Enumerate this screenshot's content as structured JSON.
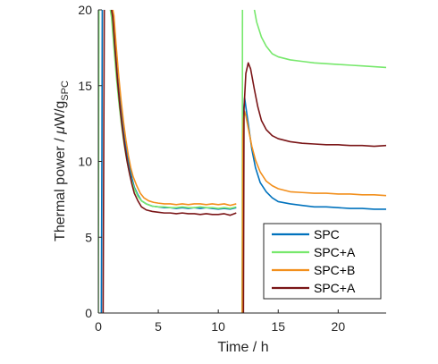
{
  "chart_data": {
    "type": "line",
    "title": "",
    "xlabel": "Time / h",
    "ylabel_parts": {
      "prefix": "Thermal power / ",
      "mu": "μ",
      "unit": "W/g",
      "subscript": "SPC"
    },
    "xlim": [
      0,
      24
    ],
    "ylim": [
      0,
      20
    ],
    "xticks": [
      0,
      5,
      10,
      15,
      20
    ],
    "yticks": [
      0,
      5,
      10,
      15,
      20
    ],
    "xtick_labels": [
      "0",
      "5",
      "10",
      "15",
      "20"
    ],
    "ytick_labels": [
      "0",
      "5",
      "10",
      "15",
      "20"
    ],
    "grid": false,
    "legend_position": "bottom-right",
    "series": [
      {
        "name": "SPC",
        "color": "#0072BD",
        "segments": [
          [
            [
              0.25,
              0
            ],
            [
              0.3,
              10.8
            ],
            [
              0.33,
              20.5
            ]
          ],
          [
            [
              1.05,
              20.5
            ],
            [
              1.2,
              19.8
            ],
            [
              1.4,
              17.6
            ],
            [
              1.6,
              15.6
            ],
            [
              1.8,
              14.0
            ],
            [
              2.0,
              12.6
            ],
            [
              2.2,
              11.4
            ],
            [
              2.4,
              10.4
            ],
            [
              2.6,
              9.6
            ],
            [
              2.8,
              8.9
            ],
            [
              3.0,
              8.3
            ],
            [
              3.3,
              7.8
            ],
            [
              3.6,
              7.4
            ],
            [
              4.0,
              7.2
            ],
            [
              4.5,
              7.05
            ],
            [
              5.0,
              7.0
            ],
            [
              5.5,
              6.95
            ],
            [
              6.0,
              6.95
            ],
            [
              6.5,
              6.9
            ],
            [
              7.0,
              6.95
            ],
            [
              7.5,
              6.9
            ],
            [
              8.0,
              6.95
            ],
            [
              8.5,
              6.9
            ],
            [
              9.0,
              6.95
            ],
            [
              9.5,
              6.9
            ],
            [
              10.0,
              6.85
            ],
            [
              10.5,
              6.9
            ],
            [
              11.0,
              6.85
            ],
            [
              11.5,
              6.95
            ]
          ],
          [
            [
              12.0,
              0
            ],
            [
              12.05,
              10.8
            ],
            [
              12.1,
              13.2
            ],
            [
              12.2,
              14.2
            ],
            [
              12.3,
              13.6
            ],
            [
              12.5,
              12.5
            ],
            [
              12.8,
              10.8
            ],
            [
              13.1,
              9.6
            ],
            [
              13.5,
              8.6
            ],
            [
              14.0,
              8.0
            ],
            [
              14.5,
              7.6
            ],
            [
              15.0,
              7.35
            ],
            [
              16.0,
              7.2
            ],
            [
              17.0,
              7.1
            ],
            [
              18.0,
              7.0
            ],
            [
              19.0,
              7.0
            ],
            [
              20.0,
              6.95
            ],
            [
              21.0,
              6.9
            ],
            [
              22.0,
              6.9
            ],
            [
              23.0,
              6.85
            ],
            [
              24.0,
              6.85
            ]
          ]
        ]
      },
      {
        "name": "SPC+A",
        "color": "#77E86C",
        "segments": [
          [
            [
              0.0,
              0
            ],
            [
              0.05,
              20.5
            ]
          ],
          [
            [
              0.9,
              20.5
            ],
            [
              1.1,
              19.5
            ],
            [
              1.3,
              17.5
            ],
            [
              1.5,
              15.6
            ],
            [
              1.7,
              14.0
            ],
            [
              1.9,
              12.6
            ],
            [
              2.1,
              11.4
            ],
            [
              2.3,
              10.4
            ],
            [
              2.5,
              9.6
            ],
            [
              2.7,
              8.9
            ],
            [
              3.0,
              8.2
            ],
            [
              3.3,
              7.7
            ],
            [
              3.6,
              7.4
            ],
            [
              4.0,
              7.2
            ],
            [
              4.5,
              7.05
            ],
            [
              5.0,
              7.0
            ],
            [
              5.5,
              7.0
            ],
            [
              6.0,
              6.95
            ],
            [
              6.5,
              6.95
            ],
            [
              7.0,
              7.0
            ],
            [
              7.5,
              6.95
            ],
            [
              8.0,
              6.95
            ],
            [
              8.5,
              7.0
            ],
            [
              9.0,
              6.95
            ],
            [
              9.5,
              6.95
            ],
            [
              10.0,
              6.9
            ],
            [
              10.5,
              6.95
            ],
            [
              11.0,
              6.9
            ],
            [
              11.5,
              7.0
            ]
          ],
          [
            [
              12.0,
              0
            ],
            [
              12.02,
              20.5
            ]
          ],
          [
            [
              12.9,
              20.5
            ],
            [
              13.2,
              19.2
            ],
            [
              13.6,
              18.2
            ],
            [
              14.0,
              17.6
            ],
            [
              14.5,
              17.1
            ],
            [
              15.0,
              16.9
            ],
            [
              16.0,
              16.7
            ],
            [
              17.0,
              16.6
            ],
            [
              18.0,
              16.5
            ],
            [
              19.0,
              16.45
            ],
            [
              20.0,
              16.4
            ],
            [
              21.0,
              16.35
            ],
            [
              22.0,
              16.3
            ],
            [
              23.0,
              16.25
            ],
            [
              24.0,
              16.2
            ]
          ]
        ]
      },
      {
        "name": "SPC+B",
        "color": "#F28F1C",
        "segments": [
          [
            [
              1.1,
              20.5
            ],
            [
              1.3,
              19.6
            ],
            [
              1.5,
              17.5
            ],
            [
              1.7,
              15.6
            ],
            [
              1.9,
              14.0
            ],
            [
              2.1,
              12.6
            ],
            [
              2.3,
              11.4
            ],
            [
              2.5,
              10.4
            ],
            [
              2.7,
              9.6
            ],
            [
              2.9,
              9.0
            ],
            [
              3.2,
              8.4
            ],
            [
              3.5,
              7.9
            ],
            [
              3.8,
              7.6
            ],
            [
              4.2,
              7.4
            ],
            [
              4.6,
              7.3
            ],
            [
              5.0,
              7.25
            ],
            [
              5.5,
              7.2
            ],
            [
              6.0,
              7.2
            ],
            [
              6.5,
              7.15
            ],
            [
              7.0,
              7.2
            ],
            [
              7.5,
              7.15
            ],
            [
              8.0,
              7.2
            ],
            [
              8.5,
              7.2
            ],
            [
              9.0,
              7.15
            ],
            [
              9.5,
              7.2
            ],
            [
              10.0,
              7.15
            ],
            [
              10.5,
              7.2
            ],
            [
              11.0,
              7.1
            ],
            [
              11.5,
              7.2
            ]
          ],
          [
            [
              12.0,
              0
            ],
            [
              12.05,
              11.5
            ],
            [
              12.1,
              12.8
            ],
            [
              12.2,
              13.3
            ],
            [
              12.3,
              13.0
            ],
            [
              12.5,
              12.2
            ],
            [
              12.8,
              11.0
            ],
            [
              13.1,
              10.1
            ],
            [
              13.5,
              9.3
            ],
            [
              14.0,
              8.7
            ],
            [
              14.5,
              8.4
            ],
            [
              15.0,
              8.2
            ],
            [
              16.0,
              8.0
            ],
            [
              17.0,
              7.95
            ],
            [
              18.0,
              7.9
            ],
            [
              19.0,
              7.9
            ],
            [
              20.0,
              7.85
            ],
            [
              21.0,
              7.85
            ],
            [
              22.0,
              7.8
            ],
            [
              23.0,
              7.8
            ],
            [
              24.0,
              7.75
            ]
          ]
        ]
      },
      {
        "name": "SPC+A",
        "color": "#7A1517",
        "segments": [
          [
            [
              0.4,
              0
            ],
            [
              0.45,
              10.5
            ],
            [
              0.5,
              20.5
            ]
          ],
          [
            [
              1.0,
              20.5
            ],
            [
              1.2,
              19.5
            ],
            [
              1.4,
              17.3
            ],
            [
              1.6,
              15.3
            ],
            [
              1.8,
              13.6
            ],
            [
              2.0,
              12.2
            ],
            [
              2.2,
              11.0
            ],
            [
              2.4,
              10.0
            ],
            [
              2.6,
              9.2
            ],
            [
              2.8,
              8.5
            ],
            [
              3.0,
              7.9
            ],
            [
              3.3,
              7.4
            ],
            [
              3.6,
              7.0
            ],
            [
              4.0,
              6.8
            ],
            [
              4.5,
              6.7
            ],
            [
              5.0,
              6.65
            ],
            [
              5.5,
              6.6
            ],
            [
              6.0,
              6.6
            ],
            [
              6.5,
              6.55
            ],
            [
              7.0,
              6.6
            ],
            [
              7.5,
              6.55
            ],
            [
              8.0,
              6.55
            ],
            [
              8.5,
              6.5
            ],
            [
              9.0,
              6.55
            ],
            [
              9.5,
              6.5
            ],
            [
              10.0,
              6.5
            ],
            [
              10.5,
              6.55
            ],
            [
              11.0,
              6.45
            ],
            [
              11.5,
              6.6
            ]
          ],
          [
            [
              12.1,
              0
            ],
            [
              12.15,
              13.5
            ],
            [
              12.3,
              15.8
            ],
            [
              12.5,
              16.5
            ],
            [
              12.7,
              16.1
            ],
            [
              13.0,
              14.8
            ],
            [
              13.3,
              13.6
            ],
            [
              13.6,
              12.7
            ],
            [
              14.0,
              12.1
            ],
            [
              14.5,
              11.7
            ],
            [
              15.0,
              11.5
            ],
            [
              16.0,
              11.3
            ],
            [
              17.0,
              11.2
            ],
            [
              18.0,
              11.15
            ],
            [
              19.0,
              11.1
            ],
            [
              20.0,
              11.1
            ],
            [
              21.0,
              11.05
            ],
            [
              22.0,
              11.05
            ],
            [
              23.0,
              11.0
            ],
            [
              24.0,
              11.05
            ]
          ]
        ]
      }
    ]
  }
}
